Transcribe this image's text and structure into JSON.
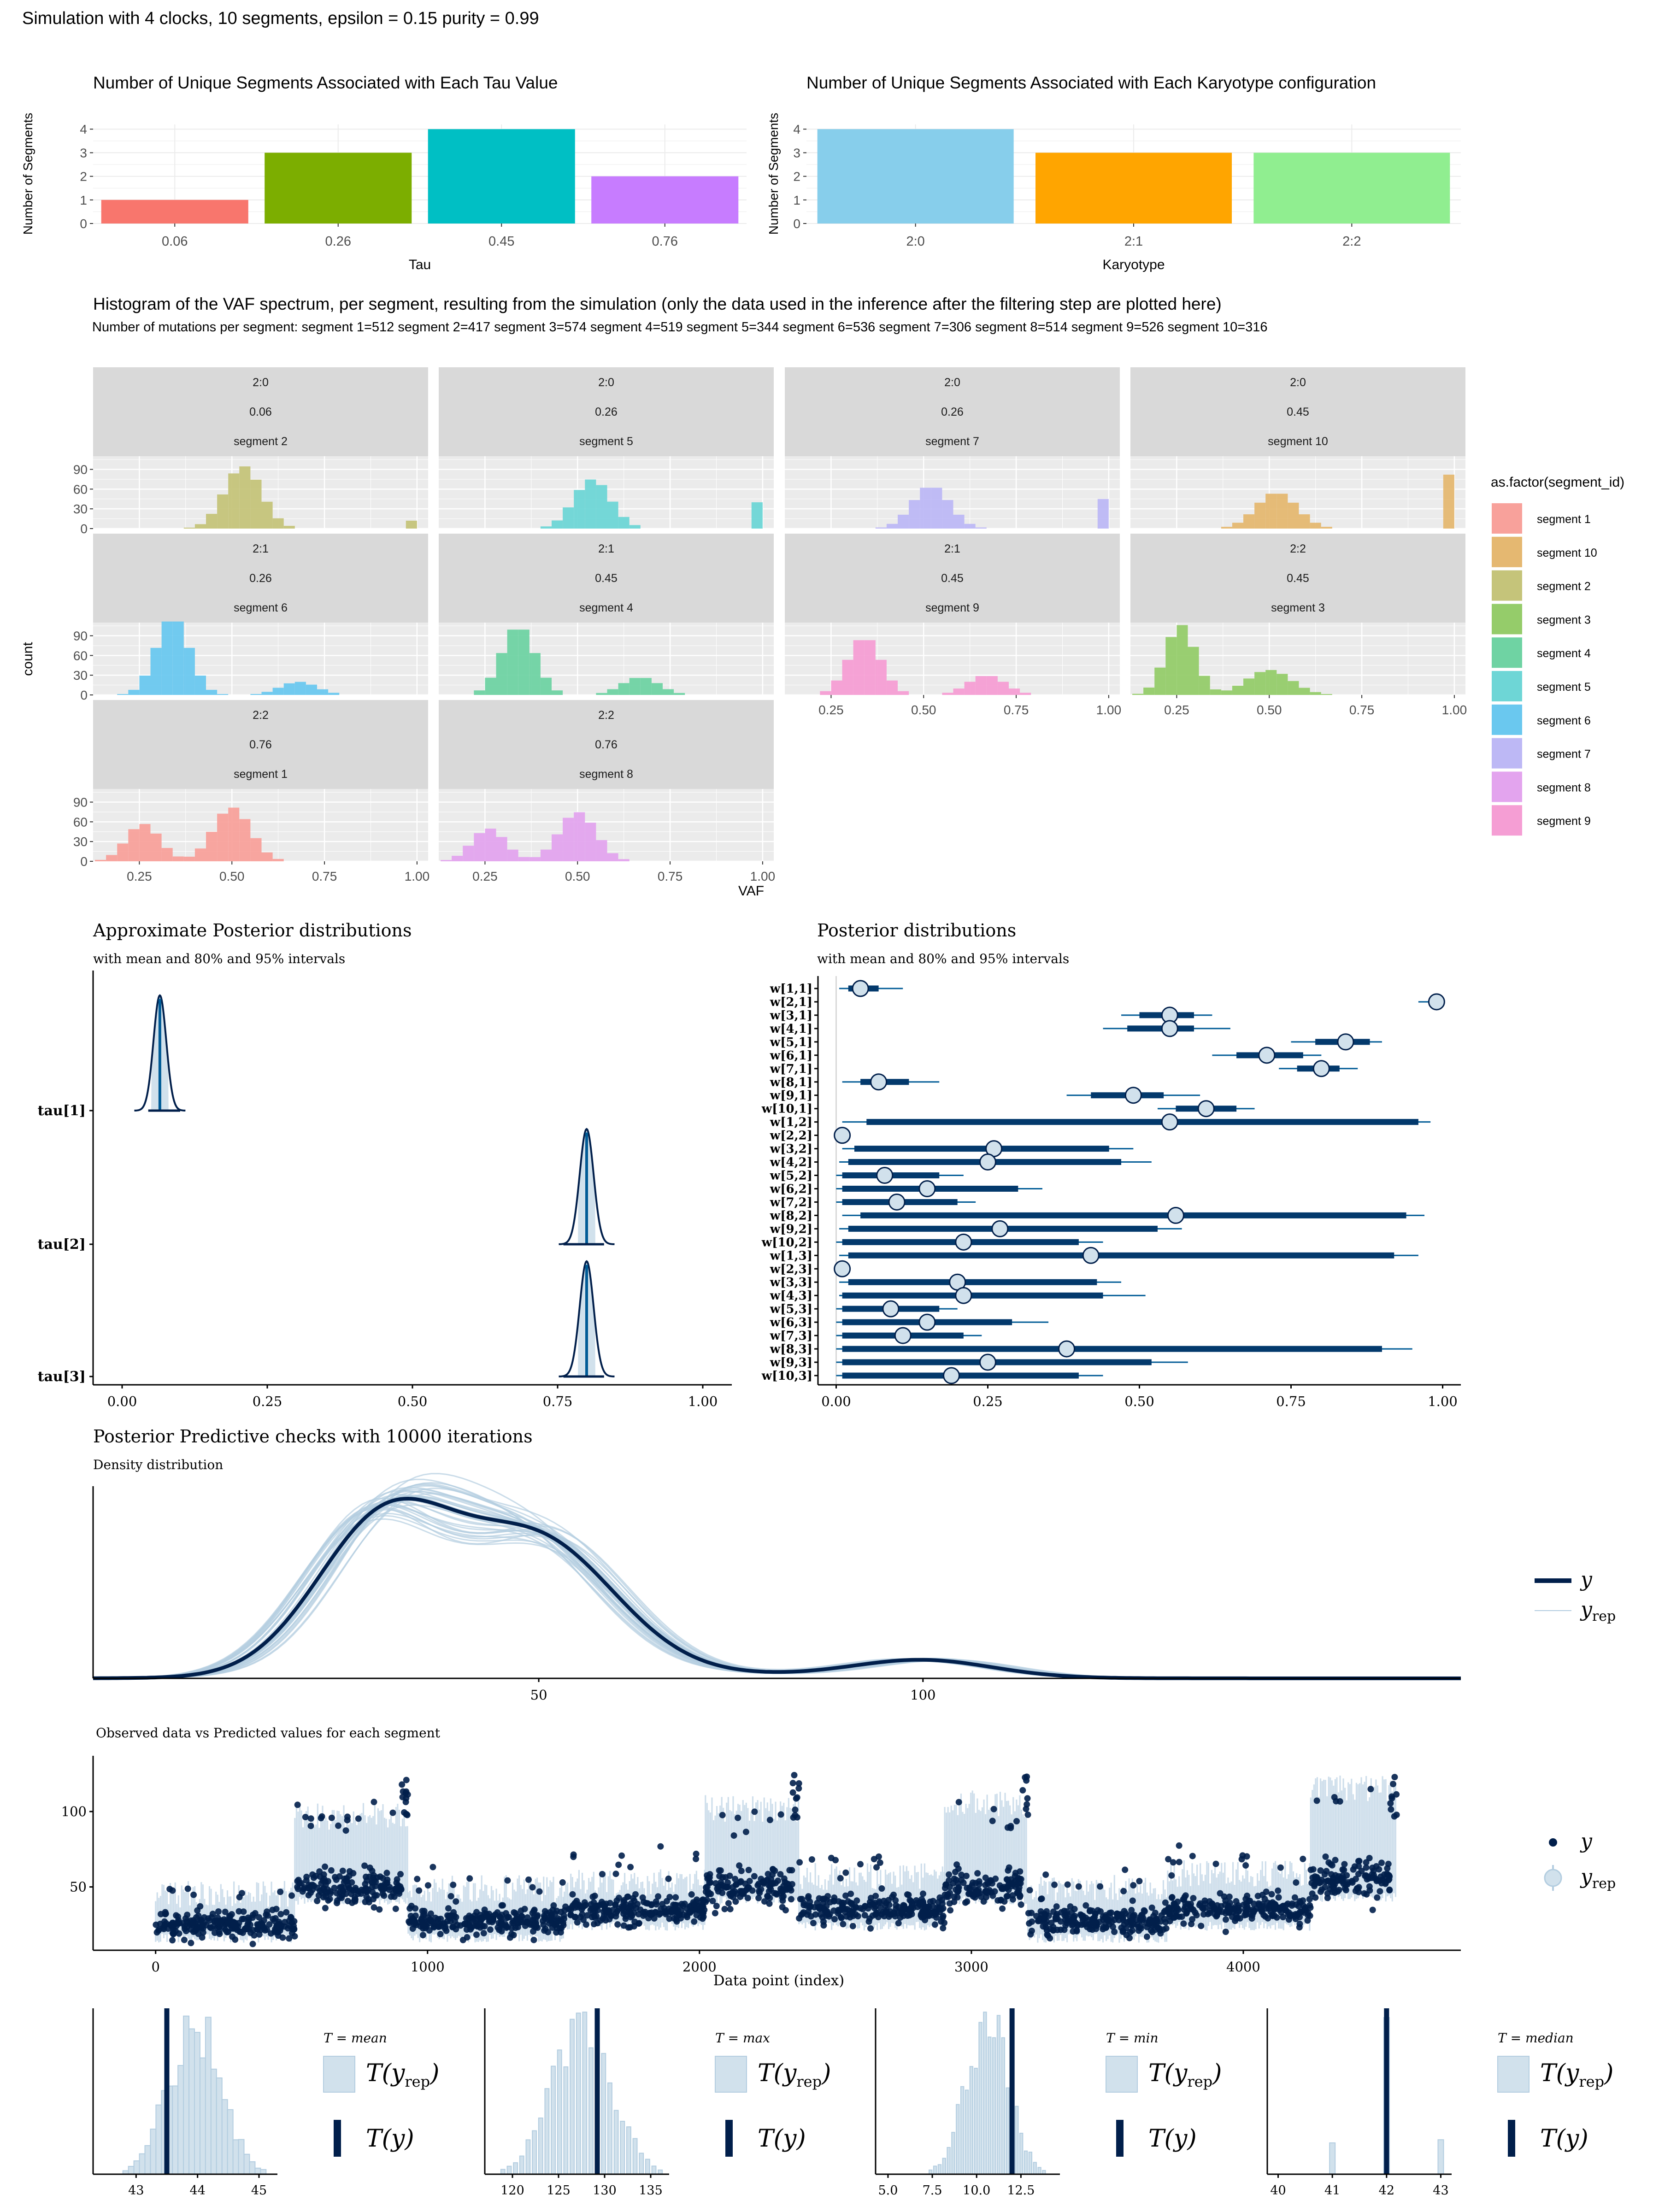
{
  "main_title": "Simulation with 4 clocks, 10 segments, epsilon = 0.15 purity = 0.99",
  "chart_data": [
    {
      "id": "tau_bar",
      "type": "bar",
      "title": "Number of Unique Segments Associated with Each Tau Value",
      "xlabel": "Tau",
      "ylabel": "Number of Segments",
      "categories": [
        "0.06",
        "0.26",
        "0.45",
        "0.76"
      ],
      "values": [
        1,
        3,
        4,
        2
      ],
      "colors": [
        "#F8766D",
        "#7CAE00",
        "#00BFC4",
        "#C77CFF"
      ],
      "ylim": [
        0,
        4.2
      ],
      "yticks": [
        "0",
        "1",
        "2",
        "3",
        "4"
      ]
    },
    {
      "id": "karyo_bar",
      "type": "bar",
      "title": "Number of Unique Segments Associated with Each Karyotype configuration",
      "xlabel": "Karyotype",
      "ylabel": "Number of Segments",
      "categories": [
        "2:0",
        "2:1",
        "2:2"
      ],
      "values": [
        4,
        3,
        3
      ],
      "colors": [
        "#87CEEB",
        "#FFA500",
        "#90EE90"
      ],
      "ylim": [
        0,
        4.2
      ],
      "yticks": [
        "0",
        "1",
        "2",
        "3",
        "4"
      ]
    },
    {
      "id": "vaf_hist",
      "type": "bar",
      "title": "Histogram of the VAF spectrum, per segment, resulting from the simulation (only the data used in the inference after the filtering step are plotted here)",
      "subtitle": "Number of mutations per segment: segment 1=512 segment 2=417 segment 3=574 segment 4=519 segment 5=344 segment 6=536 segment 7=306 segment 8=514 segment 9=526 segment 10=316",
      "xlabel": "VAF",
      "ylabel": "count",
      "xlim": [
        0.125,
        1.03
      ],
      "ylim": [
        0,
        110
      ],
      "xticks": [
        "0.25",
        "0.50",
        "0.75",
        "1.00"
      ],
      "yticks": [
        "0",
        "30",
        "60",
        "90"
      ],
      "legend_title": "as.factor(segment_id)",
      "legend": [
        {
          "label": "segment 1",
          "color": "#F8A19B"
        },
        {
          "label": "segment 10",
          "color": "#E5B871"
        },
        {
          "label": "segment 2",
          "color": "#C5C47A"
        },
        {
          "label": "segment 3",
          "color": "#95CC6A"
        },
        {
          "label": "segment 4",
          "color": "#6FD3A3"
        },
        {
          "label": "segment 5",
          "color": "#6ED6D6"
        },
        {
          "label": "segment 6",
          "color": "#6AC8EF"
        },
        {
          "label": "segment 7",
          "color": "#BDB8F5"
        },
        {
          "label": "segment 8",
          "color": "#E3A4EE"
        },
        {
          "label": "segment 9",
          "color": "#F59ED4"
        }
      ],
      "panels": [
        {
          "strip": [
            "2:0",
            "0.06",
            "segment 2"
          ],
          "color": "#C5C47A",
          "peaks": [
            [
              0.53,
              95,
              0.05
            ]
          ],
          "spike": [
            0.98,
            12
          ]
        },
        {
          "strip": [
            "2:0",
            "0.26",
            "segment 5"
          ],
          "color": "#6ED6D6",
          "peaks": [
            [
              0.54,
              75,
              0.05
            ]
          ],
          "spike": [
            0.98,
            40
          ]
        },
        {
          "strip": [
            "2:0",
            "0.26",
            "segment 7"
          ],
          "color": "#BDB8F5",
          "peaks": [
            [
              0.52,
              65,
              0.05
            ]
          ],
          "spike": [
            0.98,
            45
          ]
        },
        {
          "strip": [
            "2:0",
            "0.45",
            "segment 10"
          ],
          "color": "#E5B871",
          "peaks": [
            [
              0.52,
              55,
              0.055
            ]
          ],
          "spike": [
            0.99,
            82
          ]
        },
        {
          "strip": [
            "2:1",
            "0.26",
            "segment 6"
          ],
          "color": "#6AC8EF",
          "peaks": [
            [
              0.34,
              118,
              0.045
            ],
            [
              0.68,
              20,
              0.05
            ]
          ]
        },
        {
          "strip": [
            "2:1",
            "0.45",
            "segment 4"
          ],
          "color": "#6FD3A3",
          "peaks": [
            [
              0.34,
              105,
              0.045
            ],
            [
              0.67,
              27,
              0.05
            ]
          ]
        },
        {
          "strip": [
            "2:1",
            "0.45",
            "segment 9"
          ],
          "color": "#F59ED4",
          "peaks": [
            [
              0.34,
              88,
              0.045
            ],
            [
              0.67,
              30,
              0.05
            ]
          ]
        },
        {
          "strip": [
            "2:2",
            "0.45",
            "segment 3"
          ],
          "color": "#95CC6A",
          "peaks": [
            [
              0.26,
              107,
              0.04
            ],
            [
              0.5,
              38,
              0.06
            ]
          ]
        },
        {
          "strip": [
            "2:2",
            "0.76",
            "segment 1"
          ],
          "color": "#F8A19B",
          "peaks": [
            [
              0.26,
              57,
              0.045
            ],
            [
              0.5,
              82,
              0.05
            ]
          ]
        },
        {
          "strip": [
            "2:2",
            "0.76",
            "segment 8"
          ],
          "color": "#E3A4EE",
          "peaks": [
            [
              0.26,
              50,
              0.045
            ],
            [
              0.5,
              75,
              0.05
            ]
          ]
        }
      ]
    },
    {
      "id": "tau_post",
      "type": "area",
      "title": "Approximate Posterior distributions",
      "subtitle": "with mean and 80% and 95% intervals",
      "xlim": [
        -0.05,
        1.05
      ],
      "xticks": [
        "0.00",
        "0.25",
        "0.50",
        "0.75",
        "1.00"
      ],
      "params": [
        {
          "label": "tau[1]",
          "mean": 0.065,
          "sd": 0.011,
          "i80": [
            0.05,
            0.08
          ],
          "i95": [
            0.045,
            0.1
          ]
        },
        {
          "label": "tau[2]",
          "mean": 0.8,
          "sd": 0.012,
          "i80": [
            0.785,
            0.815
          ],
          "i95": [
            0.76,
            0.83
          ]
        },
        {
          "label": "tau[3]",
          "mean": 0.8,
          "sd": 0.012,
          "i80": [
            0.785,
            0.815
          ],
          "i95": [
            0.76,
            0.83
          ]
        }
      ]
    },
    {
      "id": "w_post",
      "type": "scatter",
      "title": "Posterior distributions",
      "subtitle": "with mean and 80% and 95% intervals",
      "xlim": [
        -0.03,
        1.03
      ],
      "xticks": [
        "0.00",
        "0.25",
        "0.50",
        "0.75",
        "1.00"
      ],
      "params": [
        {
          "label": "w[1,1]",
          "mean": 0.04,
          "i80": [
            0.02,
            0.07
          ],
          "i95": [
            0.005,
            0.11
          ]
        },
        {
          "label": "w[2,1]",
          "mean": 0.99,
          "i80": [
            0.98,
            1.0
          ],
          "i95": [
            0.96,
            1.0
          ]
        },
        {
          "label": "w[3,1]",
          "mean": 0.55,
          "i80": [
            0.5,
            0.59
          ],
          "i95": [
            0.47,
            0.62
          ]
        },
        {
          "label": "w[4,1]",
          "mean": 0.55,
          "i80": [
            0.48,
            0.59
          ],
          "i95": [
            0.44,
            0.65
          ]
        },
        {
          "label": "w[5,1]",
          "mean": 0.84,
          "i80": [
            0.79,
            0.88
          ],
          "i95": [
            0.75,
            0.9
          ]
        },
        {
          "label": "w[6,1]",
          "mean": 0.71,
          "i80": [
            0.66,
            0.77
          ],
          "i95": [
            0.62,
            0.8
          ]
        },
        {
          "label": "w[7,1]",
          "mean": 0.8,
          "i80": [
            0.76,
            0.83
          ],
          "i95": [
            0.73,
            0.86
          ]
        },
        {
          "label": "w[8,1]",
          "mean": 0.07,
          "i80": [
            0.04,
            0.12
          ],
          "i95": [
            0.01,
            0.17
          ]
        },
        {
          "label": "w[9,1]",
          "mean": 0.49,
          "i80": [
            0.42,
            0.54
          ],
          "i95": [
            0.38,
            0.6
          ]
        },
        {
          "label": "w[10,1]",
          "mean": 0.61,
          "i80": [
            0.56,
            0.66
          ],
          "i95": [
            0.53,
            0.69
          ]
        },
        {
          "label": "w[1,2]",
          "mean": 0.55,
          "i80": [
            0.05,
            0.96
          ],
          "i95": [
            0.01,
            0.98
          ]
        },
        {
          "label": "w[2,2]",
          "mean": 0.01,
          "i80": [
            0.0,
            0.01
          ],
          "i95": [
            0.0,
            0.02
          ]
        },
        {
          "label": "w[3,2]",
          "mean": 0.26,
          "i80": [
            0.03,
            0.45
          ],
          "i95": [
            0.01,
            0.49
          ]
        },
        {
          "label": "w[4,2]",
          "mean": 0.25,
          "i80": [
            0.02,
            0.47
          ],
          "i95": [
            0.005,
            0.52
          ]
        },
        {
          "label": "w[5,2]",
          "mean": 0.08,
          "i80": [
            0.01,
            0.17
          ],
          "i95": [
            0.0,
            0.21
          ]
        },
        {
          "label": "w[6,2]",
          "mean": 0.15,
          "i80": [
            0.01,
            0.3
          ],
          "i95": [
            0.0,
            0.34
          ]
        },
        {
          "label": "w[7,2]",
          "mean": 0.1,
          "i80": [
            0.01,
            0.2
          ],
          "i95": [
            0.0,
            0.23
          ]
        },
        {
          "label": "w[8,2]",
          "mean": 0.56,
          "i80": [
            0.04,
            0.94
          ],
          "i95": [
            0.01,
            0.97
          ]
        },
        {
          "label": "w[9,2]",
          "mean": 0.27,
          "i80": [
            0.02,
            0.53
          ],
          "i95": [
            0.005,
            0.57
          ]
        },
        {
          "label": "w[10,2]",
          "mean": 0.21,
          "i80": [
            0.01,
            0.4
          ],
          "i95": [
            0.0,
            0.44
          ]
        },
        {
          "label": "w[1,3]",
          "mean": 0.42,
          "i80": [
            0.02,
            0.92
          ],
          "i95": [
            0.005,
            0.96
          ]
        },
        {
          "label": "w[2,3]",
          "mean": 0.01,
          "i80": [
            0.0,
            0.01
          ],
          "i95": [
            0.0,
            0.02
          ]
        },
        {
          "label": "w[3,3]",
          "mean": 0.2,
          "i80": [
            0.02,
            0.43
          ],
          "i95": [
            0.005,
            0.47
          ]
        },
        {
          "label": "w[4,3]",
          "mean": 0.21,
          "i80": [
            0.01,
            0.44
          ],
          "i95": [
            0.005,
            0.51
          ]
        },
        {
          "label": "w[5,3]",
          "mean": 0.09,
          "i80": [
            0.01,
            0.17
          ],
          "i95": [
            0.0,
            0.2
          ]
        },
        {
          "label": "w[6,3]",
          "mean": 0.15,
          "i80": [
            0.01,
            0.29
          ],
          "i95": [
            0.0,
            0.35
          ]
        },
        {
          "label": "w[7,3]",
          "mean": 0.11,
          "i80": [
            0.01,
            0.21
          ],
          "i95": [
            0.0,
            0.24
          ]
        },
        {
          "label": "w[8,3]",
          "mean": 0.38,
          "i80": [
            0.01,
            0.9
          ],
          "i95": [
            0.0,
            0.95
          ]
        },
        {
          "label": "w[9,3]",
          "mean": 0.25,
          "i80": [
            0.01,
            0.52
          ],
          "i95": [
            0.0,
            0.58
          ]
        },
        {
          "label": "w[10,3]",
          "mean": 0.19,
          "i80": [
            0.01,
            0.4
          ],
          "i95": [
            0.0,
            0.44
          ]
        }
      ]
    },
    {
      "id": "ppc_density",
      "type": "line",
      "title": "Posterior Predictive checks with 10000 iterations",
      "subtitle": "Density distribution",
      "xlim": [
        -8,
        170
      ],
      "xticks": [
        50,
        100
      ],
      "legend": [
        "y",
        "y_rep"
      ],
      "components": [
        [
          0.45,
          30,
          9
        ],
        [
          0.42,
          50,
          10
        ],
        [
          0.04,
          60,
          25
        ],
        [
          0.05,
          100,
          9
        ]
      ]
    },
    {
      "id": "ppc_scatter",
      "type": "scatter",
      "title": "Observed data vs Predicted values for each segment",
      "xlabel": "Data point (index)",
      "xlim": [
        -230,
        4800
      ],
      "ylim": [
        8,
        137
      ],
      "xticks": [
        0,
        1000,
        2000,
        3000,
        4000
      ],
      "yticks": [
        50,
        100
      ],
      "legend": [
        "y",
        "y_rep"
      ],
      "segments": [
        [
          0,
          512,
          25,
          48
        ],
        [
          512,
          929,
          50,
          100
        ],
        [
          929,
          1503,
          25,
          52
        ],
        [
          1503,
          2022,
          33,
          56
        ],
        [
          2022,
          2366,
          50,
          105
        ],
        [
          2366,
          2902,
          33,
          60
        ],
        [
          2902,
          3208,
          50,
          108
        ],
        [
          3208,
          3722,
          25,
          52
        ],
        [
          3722,
          4248,
          33,
          62
        ],
        [
          4248,
          4564,
          52,
          118
        ]
      ]
    },
    {
      "id": "stat_mean",
      "type": "bar",
      "stat_label": "T = mean",
      "xlim": [
        42.3,
        45.3
      ],
      "xticks": [
        "43",
        "44",
        "45"
      ],
      "observed": 43.5,
      "center": 43.95,
      "spread": 0.42,
      "legend": [
        "T(y_rep)",
        "T(y)"
      ]
    },
    {
      "id": "stat_max",
      "type": "bar",
      "stat_label": "T = max",
      "xlim": [
        117,
        137
      ],
      "xticks": [
        "120",
        "125",
        "130",
        "135"
      ],
      "observed": 129.2,
      "center": 127.5,
      "spread": 3.2,
      "legend": [
        "T(y_rep)",
        "T(y)"
      ]
    },
    {
      "id": "stat_min",
      "type": "bar",
      "stat_label": "T = min",
      "xlim": [
        4.3,
        14.7
      ],
      "xticks": [
        "5.0",
        "7.5",
        "10.0",
        "12.5"
      ],
      "observed": 12.0,
      "center": 10.6,
      "spread": 1.2,
      "legend": [
        "T(y_rep)",
        "T(y)"
      ]
    },
    {
      "id": "stat_median",
      "type": "bar",
      "stat_label": "T = median",
      "xlim": [
        39.8,
        43.2
      ],
      "xticks": [
        "40",
        "41",
        "42",
        "43"
      ],
      "observed": 42,
      "center": 42,
      "spread": 0.3,
      "legend": [
        "T(y_rep)",
        "T(y)"
      ]
    }
  ]
}
